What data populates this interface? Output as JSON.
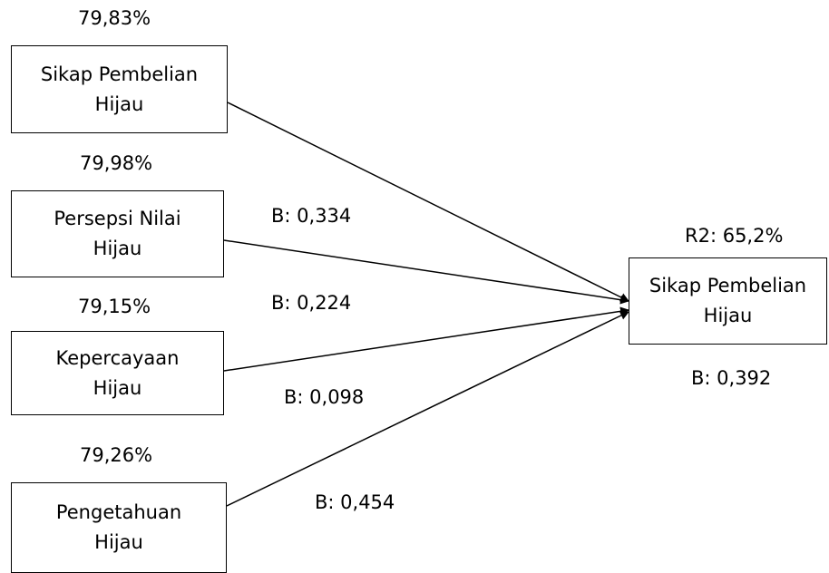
{
  "predictors": [
    {
      "pct": "79,83%",
      "line1": "Sikap Pembelian",
      "line2": "Hijau"
    },
    {
      "pct": "79,98%",
      "line1": "Persepsi Nilai",
      "line2": "Hijau"
    },
    {
      "pct": "79,15%",
      "line1": "Kepercayaan",
      "line2": "Hijau"
    },
    {
      "pct": "79,26%",
      "line1": "Pengetahuan",
      "line2": "Hijau"
    }
  ],
  "outcome": {
    "r2": "R2: 65,2%",
    "line1": "Sikap Pembelian",
    "line2": "Hijau",
    "beta": "B: 0,392"
  },
  "paths": [
    "B: 0,334",
    "B: 0,224",
    "B: 0,098",
    "B: 0,454"
  ]
}
